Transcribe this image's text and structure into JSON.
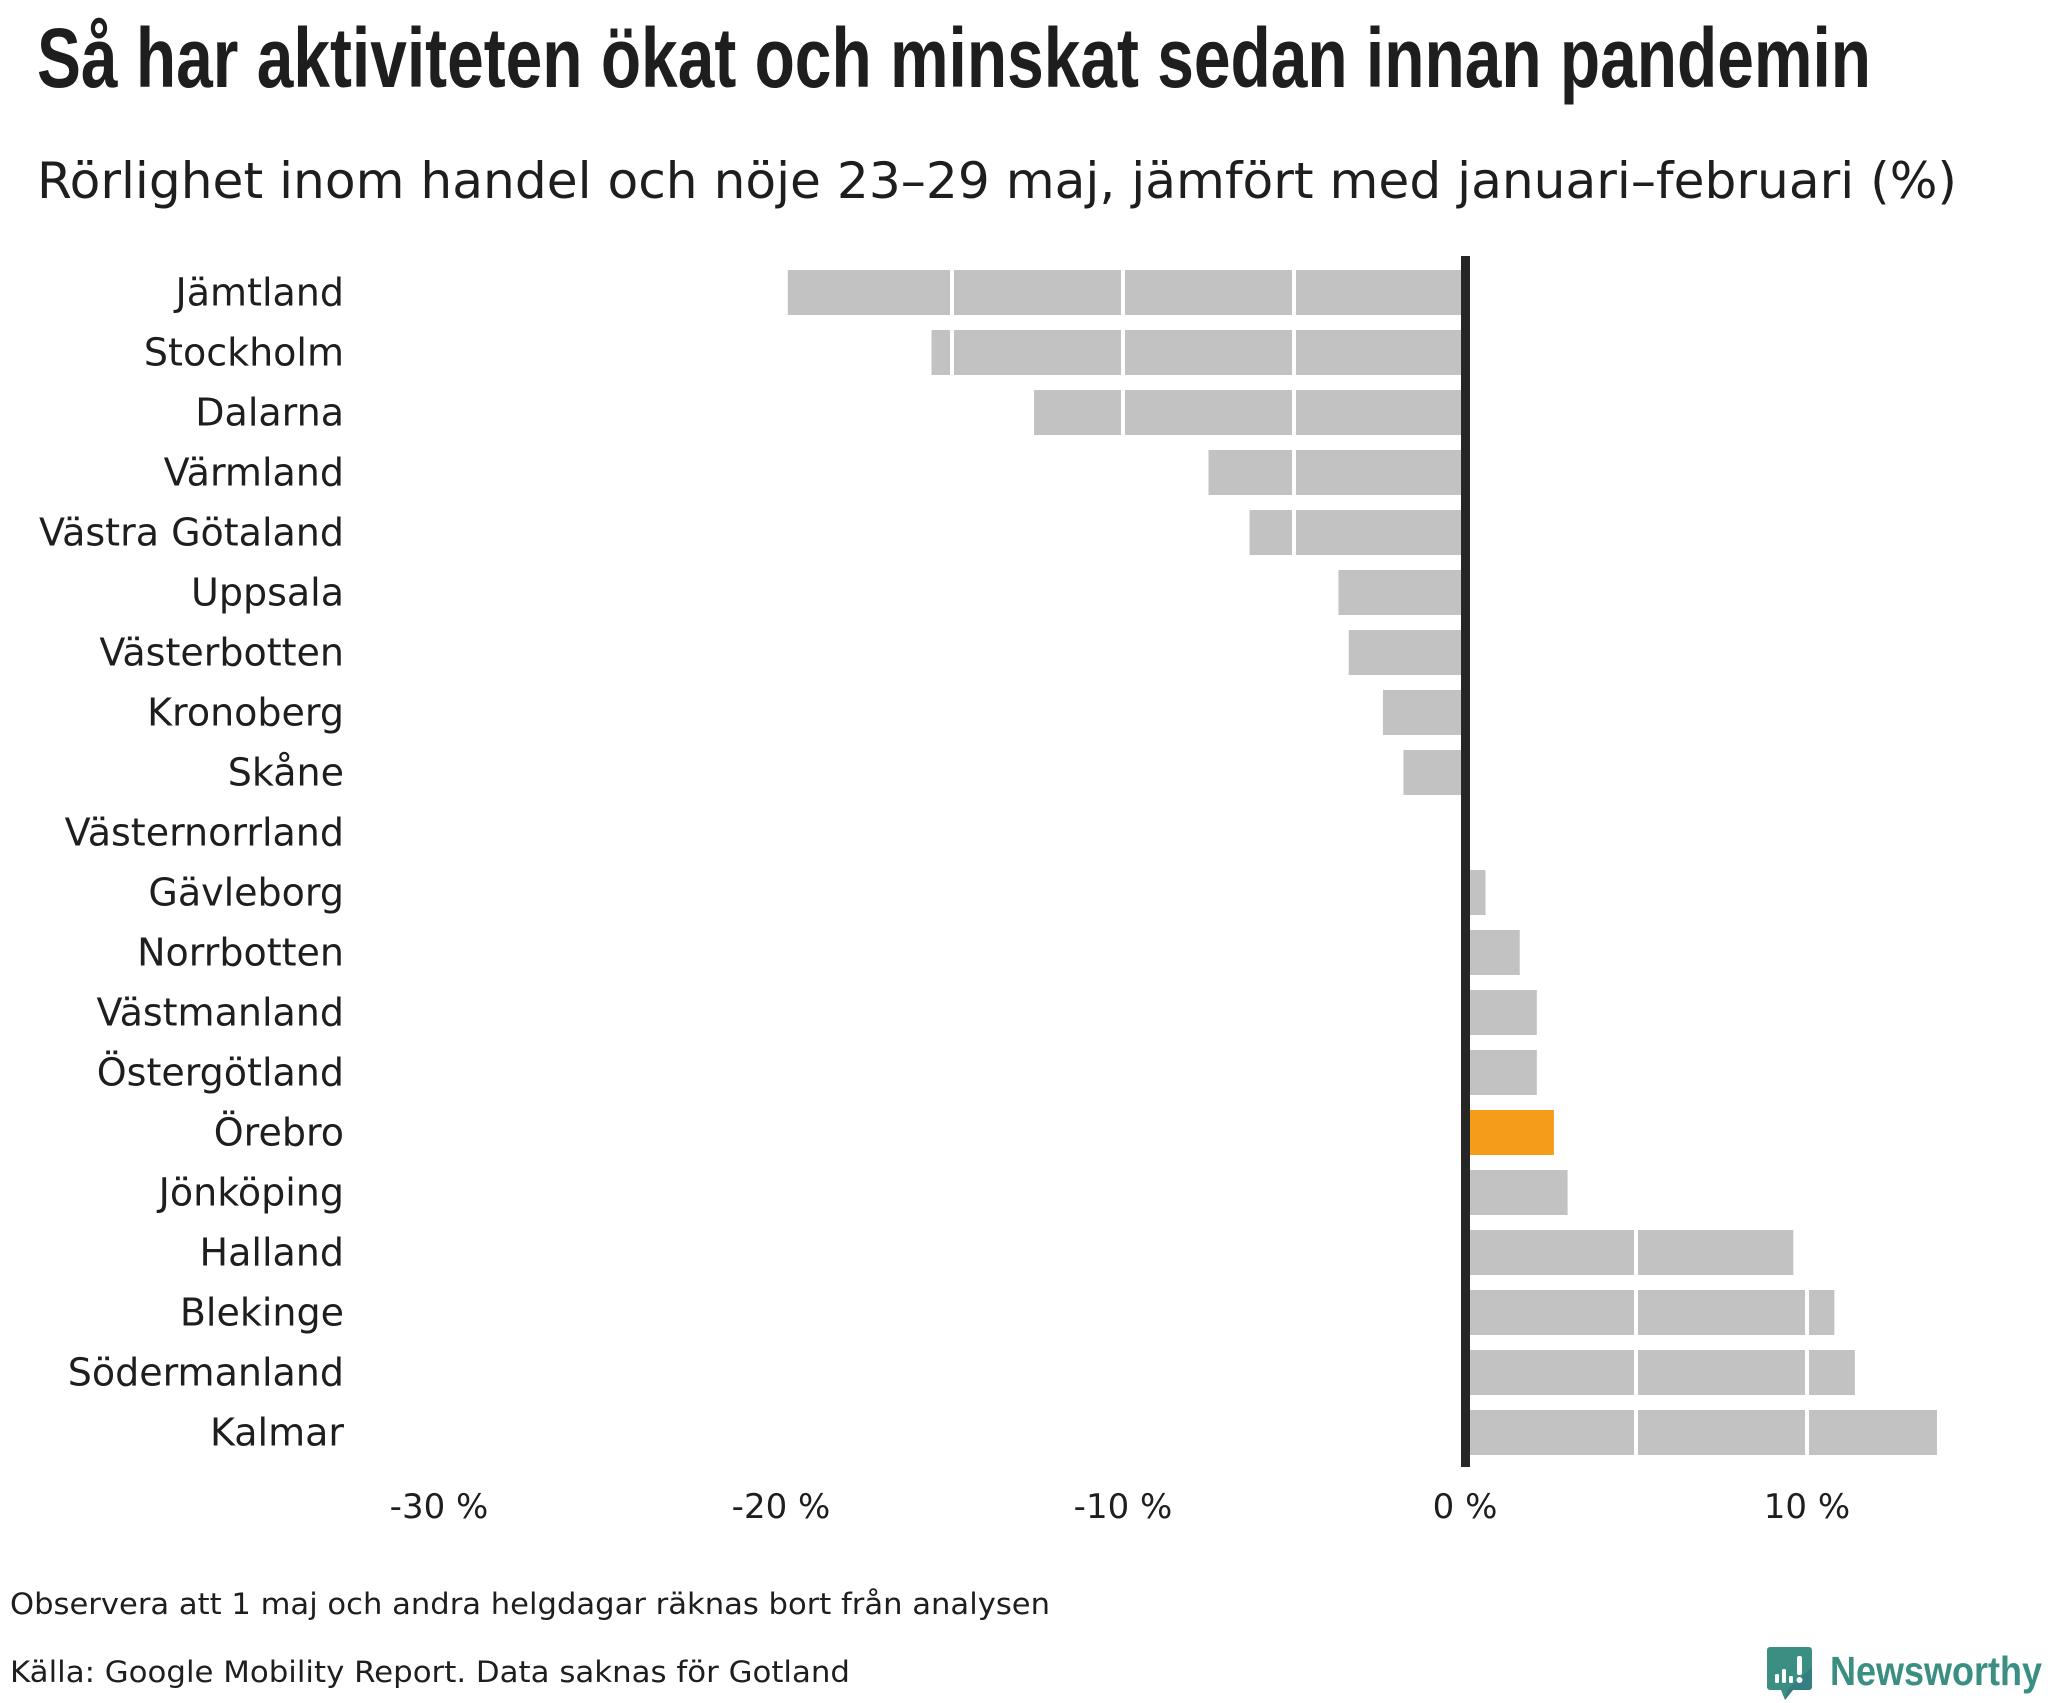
{
  "title": "Så har aktiviteten ökat och minskat sedan innan pandemin",
  "subtitle": "Rörlighet inom handel och nöje 23–29 maj, jämfört med januari–februari (%)",
  "footer": {
    "note": "Observera att 1 maj och andra helgdagar räknas bort från analysen",
    "source": "Källa: Google Mobility Report. Data saknas för Gotland"
  },
  "logo": {
    "text": "Newsworthy",
    "icon": "newsworthy-chat-chart-icon",
    "color": "#3a8f82"
  },
  "colors": {
    "bar": "#c2c2c2",
    "highlight": "#f59c1a",
    "zero_line": "#262626",
    "text": "#1e1e1e"
  },
  "chart_data": {
    "type": "bar",
    "orientation": "horizontal",
    "title": "Så har aktiviteten ökat och minskat sedan innan pandemin",
    "subtitle": "Rörlighet inom handel och nöje 23–29 maj, jämfört med januari–februari (%)",
    "xlabel": "",
    "ylabel": "",
    "xlim": [
      -33,
      15
    ],
    "grid": "white gridlines every 5 % drawn over bars",
    "x_ticks": [
      -30,
      -20,
      -10,
      0,
      10
    ],
    "x_tick_labels": [
      "-30 %",
      "-20 %",
      "-10 %",
      "0 %",
      "10 %"
    ],
    "highlight": "Örebro",
    "categories": [
      "Jämtland",
      "Stockholm",
      "Dalarna",
      "Värmland",
      "Västra Götaland",
      "Uppsala",
      "Västerbotten",
      "Kronoberg",
      "Skåne",
      "Västernorrland",
      "Gävleborg",
      "Norrbotten",
      "Västmanland",
      "Östergötland",
      "Örebro",
      "Jönköping",
      "Halland",
      "Blekinge",
      "Södermanland",
      "Kalmar"
    ],
    "values": [
      -19.8,
      -15.6,
      -12.6,
      -7.5,
      -6.3,
      -3.7,
      -3.4,
      -2.4,
      -1.8,
      0,
      0.6,
      1.6,
      2.1,
      2.1,
      2.6,
      3.0,
      9.6,
      10.8,
      11.4,
      13.8
    ]
  }
}
